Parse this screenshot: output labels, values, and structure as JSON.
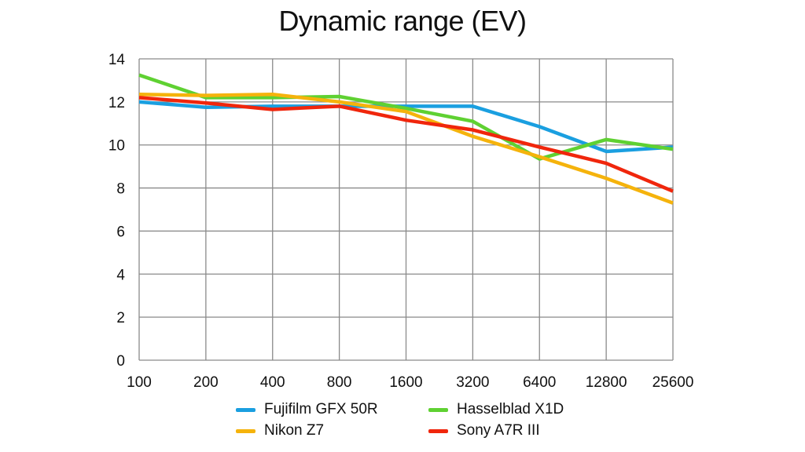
{
  "chart_data": {
    "type": "line",
    "title": "Dynamic range (EV)",
    "xlabel": "",
    "ylabel": "",
    "categories": [
      "100",
      "200",
      "400",
      "800",
      "1600",
      "3200",
      "6400",
      "12800",
      "25600"
    ],
    "ylim": [
      0,
      14
    ],
    "yticks": [
      "0",
      "2",
      "4",
      "6",
      "8",
      "10",
      "12",
      "14"
    ],
    "grid": true,
    "legend_position": "bottom",
    "series": [
      {
        "name": "Fujifilm GFX 50R",
        "color": "#1a9fe0",
        "values": [
          12.0,
          11.75,
          11.8,
          11.8,
          11.8,
          11.8,
          10.85,
          9.7,
          9.9
        ]
      },
      {
        "name": "Hasselblad X1D",
        "color": "#5fd132",
        "values": [
          13.25,
          12.2,
          12.2,
          12.25,
          11.7,
          11.1,
          9.35,
          10.25,
          9.8
        ]
      },
      {
        "name": "Nikon Z7",
        "color": "#f5b30c",
        "values": [
          12.35,
          12.3,
          12.35,
          12.0,
          11.55,
          10.4,
          9.45,
          8.45,
          7.3
        ]
      },
      {
        "name": "Sony A7R III",
        "color": "#f0260c",
        "values": [
          12.2,
          11.95,
          11.65,
          11.8,
          11.15,
          10.7,
          9.9,
          9.15,
          7.85
        ]
      }
    ]
  }
}
